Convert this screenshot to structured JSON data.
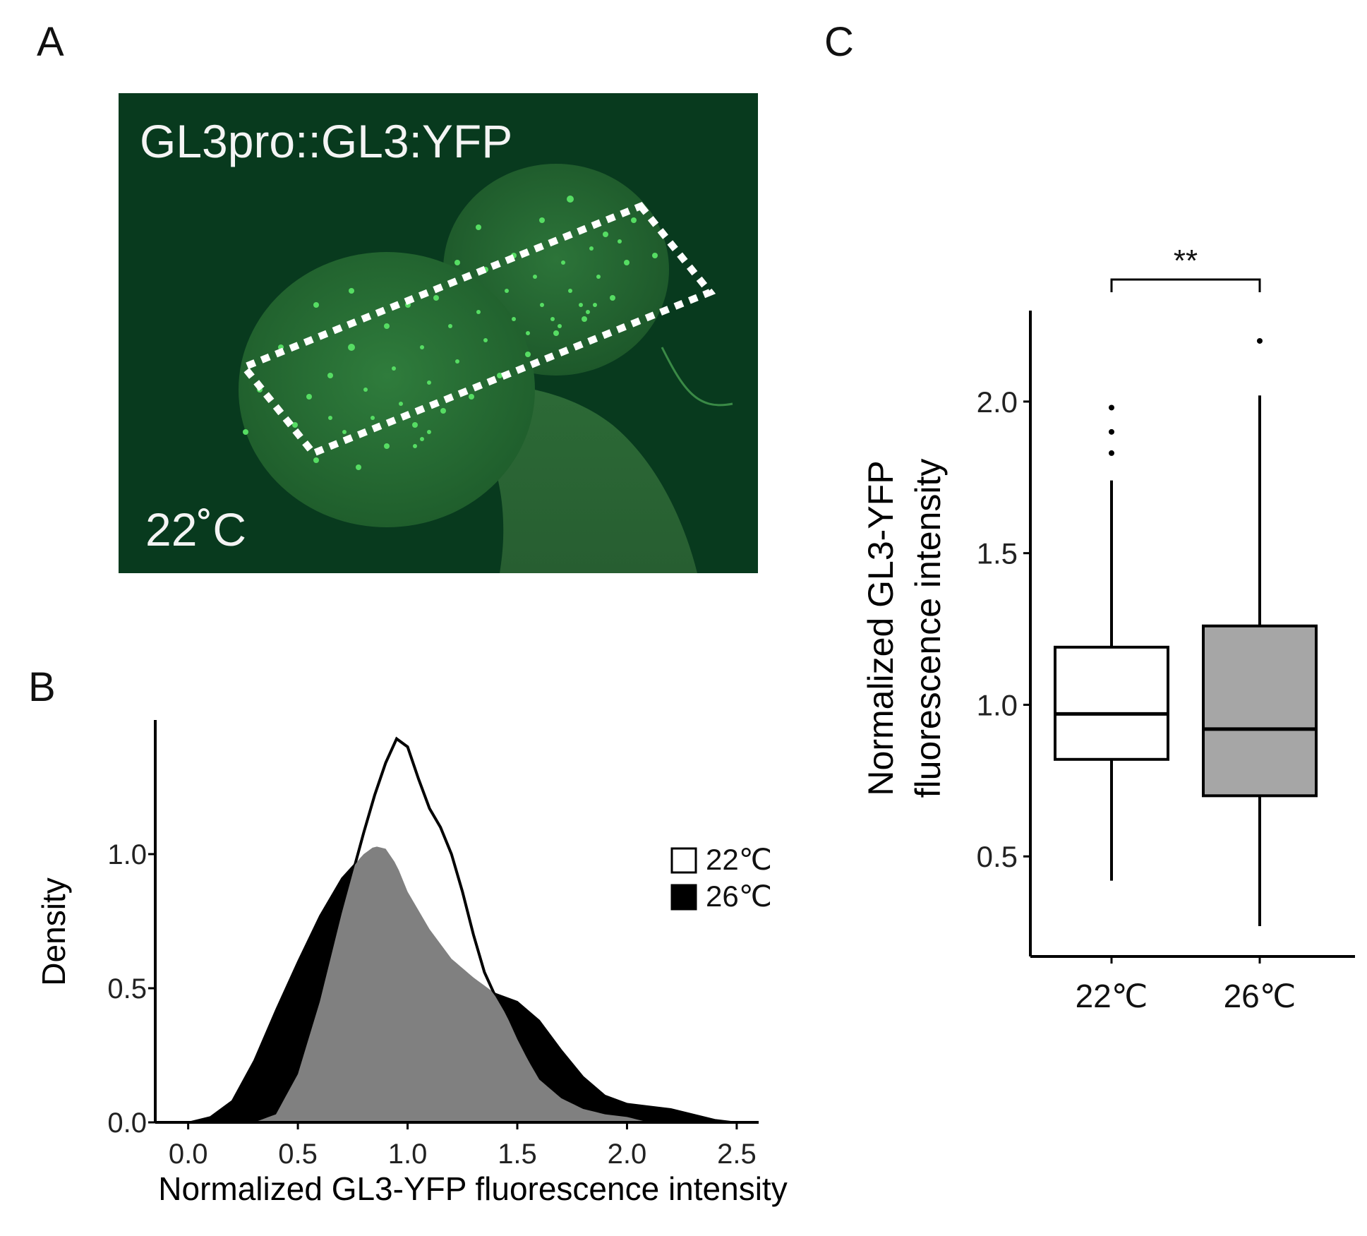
{
  "panels": {
    "a": {
      "letter": "A",
      "construct_label": "GL3pro::GL3:YFP",
      "temperature_label": "22˚C"
    },
    "b": {
      "letter": "B"
    },
    "c": {
      "letter": "C"
    }
  },
  "colors": {
    "image_bg": "#083a1e",
    "fluorescence": "#3cc24a",
    "box_22": "#ffffff",
    "box_26": "#a6a6a6",
    "density_overlap": "#808080",
    "density_26_only": "#000000"
  },
  "chart_data": [
    {
      "type": "area",
      "panel": "B",
      "title": "",
      "xlabel": "Normalized GL3-YFP fluorescence intensity",
      "ylabel": "Density",
      "xlim": [
        -0.15,
        2.6
      ],
      "ylim": [
        0,
        1.5
      ],
      "x_ticks": [
        "0.0",
        "0.5",
        "1.0",
        "1.5",
        "2.0",
        "2.5"
      ],
      "x_tick_values": [
        0.0,
        0.5,
        1.0,
        1.5,
        2.0,
        2.5
      ],
      "y_ticks": [
        "0.0",
        "0.5",
        "1.0"
      ],
      "y_tick_values": [
        0.0,
        0.5,
        1.0
      ],
      "legend_position": "right",
      "legend": [
        {
          "label": "22℃",
          "fill": "#ffffff"
        },
        {
          "label": "26℃",
          "fill": "#000000"
        }
      ],
      "series": [
        {
          "name": "22℃",
          "x": [
            0.3,
            0.4,
            0.5,
            0.6,
            0.7,
            0.8,
            0.85,
            0.9,
            0.95,
            1.0,
            1.05,
            1.1,
            1.15,
            1.2,
            1.25,
            1.3,
            1.35,
            1.4,
            1.45,
            1.5,
            1.55,
            1.6,
            1.7,
            1.8,
            1.9,
            2.0,
            2.1
          ],
          "values": [
            0.0,
            0.03,
            0.18,
            0.45,
            0.78,
            1.08,
            1.22,
            1.34,
            1.43,
            1.4,
            1.28,
            1.17,
            1.1,
            1.0,
            0.86,
            0.7,
            0.56,
            0.47,
            0.4,
            0.31,
            0.23,
            0.16,
            0.09,
            0.05,
            0.03,
            0.02,
            0.0
          ]
        },
        {
          "name": "26℃",
          "x": [
            0.0,
            0.1,
            0.2,
            0.3,
            0.4,
            0.5,
            0.6,
            0.7,
            0.8,
            0.85,
            0.9,
            0.95,
            1.0,
            1.1,
            1.2,
            1.3,
            1.4,
            1.5,
            1.6,
            1.7,
            1.8,
            1.9,
            2.0,
            2.1,
            2.2,
            2.3,
            2.4,
            2.5
          ],
          "values": [
            0.0,
            0.02,
            0.08,
            0.23,
            0.42,
            0.6,
            0.77,
            0.91,
            1.0,
            1.03,
            1.02,
            0.96,
            0.86,
            0.72,
            0.61,
            0.54,
            0.48,
            0.45,
            0.38,
            0.27,
            0.17,
            0.1,
            0.07,
            0.06,
            0.05,
            0.03,
            0.01,
            0.0
          ]
        }
      ]
    },
    {
      "type": "box",
      "panel": "C",
      "ylabel_lines": [
        "Normalized GL3-YFP",
        "fluorescence intensity"
      ],
      "ylim": [
        0.17,
        2.3
      ],
      "y_ticks": [
        "0.5",
        "1.0",
        "1.5",
        "2.0"
      ],
      "y_tick_values": [
        0.5,
        1.0,
        1.5,
        2.0
      ],
      "categories": [
        "22℃",
        "26℃"
      ],
      "boxes": [
        {
          "name": "22℃",
          "whisker_low": 0.42,
          "q1": 0.82,
          "median": 0.97,
          "q3": 1.19,
          "whisker_high": 1.74,
          "outliers": [
            1.83,
            1.9,
            1.98
          ],
          "fill": "#ffffff"
        },
        {
          "name": "26℃",
          "whisker_low": 0.27,
          "q1": 0.7,
          "median": 0.92,
          "q3": 1.26,
          "whisker_high": 2.02,
          "outliers": [
            2.2
          ],
          "fill": "#a6a6a6"
        }
      ],
      "significance": {
        "label": "**",
        "between": [
          "22℃",
          "26℃"
        ]
      }
    }
  ]
}
